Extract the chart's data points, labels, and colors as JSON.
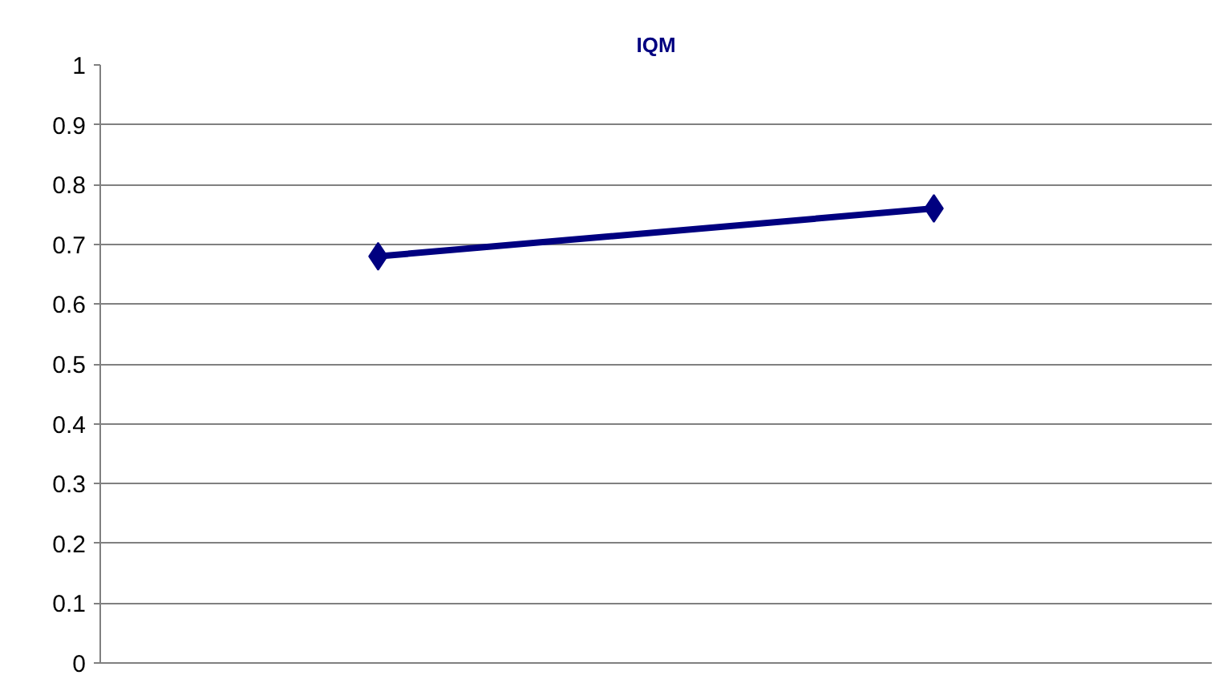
{
  "chart_data": {
    "type": "line",
    "title": "IQM",
    "categories": [
      null,
      null
    ],
    "series": [
      {
        "color": "#000080",
        "values": [
          0.68,
          0.76
        ]
      }
    ],
    "ylim": [
      0,
      1
    ],
    "yticks": [
      0,
      0.1,
      0.2,
      0.3,
      0.4,
      0.5,
      0.6,
      0.7,
      0.8,
      0.9,
      1
    ],
    "grid": "y",
    "marker": "diamond",
    "line_style": "solid",
    "tick_labels": "y"
  }
}
